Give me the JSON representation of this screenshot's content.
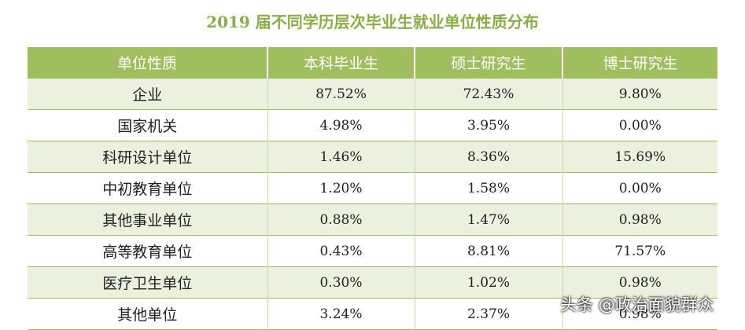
{
  "header": {
    "title": "2019 届不同学历层次毕业生就业单位性质分布"
  },
  "table": {
    "columns": [
      "单位性质",
      "本科毕业生",
      "硕士研究生",
      "博士研究生"
    ],
    "rows": [
      [
        "企业",
        "87.52%",
        "72.43%",
        "9.80%"
      ],
      [
        "国家机关",
        "4.98%",
        "3.95%",
        "0.00%"
      ],
      [
        "科研设计单位",
        "1.46%",
        "8.36%",
        "15.69%"
      ],
      [
        "中初教育单位",
        "1.20%",
        "1.58%",
        "0.00%"
      ],
      [
        "其他事业单位",
        "0.88%",
        "1.47%",
        "0.98%"
      ],
      [
        "高等教育单位",
        "0.43%",
        "8.81%",
        "71.57%"
      ],
      [
        "医疗卫生单位",
        "0.30%",
        "1.02%",
        "0.98%"
      ],
      [
        "其他单位",
        "3.24%",
        "2.37%",
        "0.98%"
      ]
    ]
  },
  "watermark": "头条 @政治面貌群众"
}
